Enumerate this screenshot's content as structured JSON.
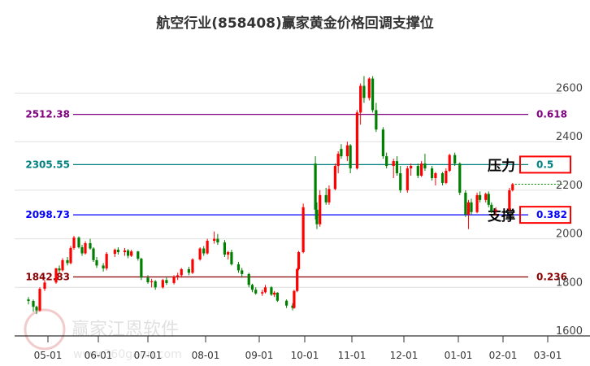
{
  "chart_data": {
    "type": "candlestick",
    "title": "航空行业(858408)赢家黄金价格回调支撑位",
    "ylim": [
      1600,
      2680
    ],
    "yticks": [
      1600,
      1800,
      2000,
      2200,
      2400,
      2600
    ],
    "xticks": [
      "05-01",
      "06-01",
      "07-01",
      "08-01",
      "09-01",
      "10-01",
      "11-01",
      "12-01",
      "01-01",
      "02-01",
      "03-01"
    ],
    "grid": true,
    "colors": {
      "up": "#ff0000",
      "down": "#008000"
    },
    "fib_levels": [
      {
        "ratio": "0.618",
        "value": 2512.38,
        "label": "2512.38",
        "color": "#800080"
      },
      {
        "ratio": "0.5",
        "value": 2305.55,
        "label": "2305.55",
        "color": "#008080",
        "tag": "压力",
        "boxed": true
      },
      {
        "ratio": "0.382",
        "value": 2098.73,
        "label": "2098.73",
        "color": "#0000ff",
        "tag": "支撑",
        "boxed": true
      },
      {
        "ratio": "0.236",
        "value": 1842.83,
        "label": "1842.83",
        "color": "#8b0000"
      }
    ],
    "last_price": 2225,
    "candles": [
      [
        "04-19",
        1750,
        1760,
        1730,
        1744
      ],
      [
        "04-22",
        1744,
        1750,
        1700,
        1720
      ],
      [
        "04-24",
        1720,
        1725,
        1690,
        1705
      ],
      [
        "04-26",
        1705,
        1800,
        1700,
        1794
      ],
      [
        "04-29",
        1794,
        1830,
        1785,
        1820
      ],
      [
        "05-06",
        1820,
        1880,
        1815,
        1878
      ],
      [
        "05-08",
        1878,
        1890,
        1860,
        1870
      ],
      [
        "05-10",
        1870,
        1920,
        1865,
        1912
      ],
      [
        "05-13",
        1912,
        1925,
        1890,
        1900
      ],
      [
        "05-15",
        1900,
        1970,
        1895,
        1962
      ],
      [
        "05-17",
        1962,
        2012,
        1955,
        2005
      ],
      [
        "05-20",
        2005,
        2010,
        1960,
        1965
      ],
      [
        "05-22",
        1965,
        1975,
        1930,
        1940
      ],
      [
        "05-24",
        1940,
        1990,
        1935,
        1982
      ],
      [
        "05-27",
        1982,
        2000,
        1955,
        1960
      ],
      [
        "05-29",
        1960,
        1965,
        1905,
        1912
      ],
      [
        "05-31",
        1912,
        1925,
        1880,
        1890
      ],
      [
        "06-04",
        1890,
        1900,
        1865,
        1878
      ],
      [
        "06-06",
        1878,
        1945,
        1870,
        1938
      ],
      [
        "06-11",
        1938,
        1960,
        1925,
        1955
      ],
      [
        "06-13",
        1955,
        1965,
        1935,
        1945
      ],
      [
        "06-17",
        1945,
        1962,
        1930,
        1952
      ],
      [
        "06-19",
        1952,
        1958,
        1920,
        1930
      ],
      [
        "06-21",
        1930,
        1955,
        1925,
        1948
      ],
      [
        "06-25",
        1948,
        1950,
        1910,
        1918
      ],
      [
        "06-27",
        1918,
        1922,
        1830,
        1840
      ],
      [
        "07-01",
        1840,
        1850,
        1815,
        1821
      ],
      [
        "07-03",
        1821,
        1835,
        1800,
        1825
      ],
      [
        "07-05",
        1825,
        1830,
        1790,
        1800
      ],
      [
        "07-09",
        1800,
        1835,
        1795,
        1830
      ],
      [
        "07-11",
        1830,
        1840,
        1810,
        1818
      ],
      [
        "07-15",
        1818,
        1850,
        1812,
        1845
      ],
      [
        "07-17",
        1845,
        1860,
        1830,
        1850
      ],
      [
        "07-19",
        1850,
        1880,
        1840,
        1875
      ],
      [
        "07-23",
        1875,
        1885,
        1850,
        1860
      ],
      [
        "07-25",
        1860,
        1920,
        1855,
        1915
      ],
      [
        "07-29",
        1915,
        1965,
        1910,
        1960
      ],
      [
        "07-31",
        1960,
        1970,
        1930,
        1940
      ],
      [
        "08-02",
        1940,
        2000,
        1935,
        1992
      ],
      [
        "08-06",
        1992,
        2030,
        1980,
        2000
      ],
      [
        "08-08",
        2000,
        2020,
        1975,
        1985
      ],
      [
        "08-12",
        1985,
        1995,
        1925,
        1935
      ],
      [
        "08-14",
        1935,
        1950,
        1915,
        1945
      ],
      [
        "08-16",
        1945,
        1955,
        1890,
        1895
      ],
      [
        "08-20",
        1895,
        1905,
        1860,
        1870
      ],
      [
        "08-22",
        1870,
        1880,
        1840,
        1855
      ],
      [
        "08-26",
        1855,
        1860,
        1800,
        1810
      ],
      [
        "08-28",
        1810,
        1815,
        1780,
        1790
      ],
      [
        "08-30",
        1790,
        1800,
        1770,
        1775
      ],
      [
        "09-03",
        1775,
        1790,
        1765,
        1780
      ],
      [
        "09-05",
        1780,
        1810,
        1775,
        1800
      ],
      [
        "09-09",
        1800,
        1805,
        1765,
        1770
      ],
      [
        "09-11",
        1770,
        1785,
        1760,
        1778
      ],
      [
        "09-13",
        1778,
        1780,
        1740,
        1745
      ],
      [
        "09-19",
        1745,
        1750,
        1715,
        1725
      ],
      [
        "09-23",
        1725,
        1735,
        1705,
        1715
      ],
      [
        "09-24",
        1715,
        1790,
        1712,
        1785
      ],
      [
        "09-26",
        1785,
        1880,
        1780,
        1875
      ],
      [
        "09-27",
        1875,
        1950,
        1870,
        1945
      ],
      [
        "09-30",
        1945,
        2145,
        1940,
        2130
      ],
      [
        "10-08",
        2310,
        2340,
        2080,
        2120
      ],
      [
        "10-09",
        2120,
        2150,
        2040,
        2060
      ],
      [
        "10-11",
        2060,
        2200,
        2050,
        2180
      ],
      [
        "10-15",
        2180,
        2210,
        2140,
        2150
      ],
      [
        "10-17",
        2150,
        2220,
        2140,
        2205
      ],
      [
        "10-21",
        2205,
        2310,
        2200,
        2300
      ],
      [
        "10-23",
        2300,
        2360,
        2270,
        2350
      ],
      [
        "10-25",
        2370,
        2390,
        2330,
        2340
      ],
      [
        "10-29",
        2340,
        2400,
        2320,
        2385
      ],
      [
        "10-31",
        2385,
        2390,
        2270,
        2290
      ],
      [
        "11-04",
        2290,
        2530,
        2285,
        2520
      ],
      [
        "11-06",
        2520,
        2640,
        2470,
        2630
      ],
      [
        "11-08",
        2630,
        2670,
        2560,
        2580
      ],
      [
        "11-11",
        2580,
        2665,
        2570,
        2660
      ],
      [
        "11-13",
        2660,
        2670,
        2520,
        2530
      ],
      [
        "11-15",
        2530,
        2560,
        2440,
        2450
      ],
      [
        "11-19",
        2450,
        2460,
        2330,
        2340
      ],
      [
        "11-21",
        2340,
        2355,
        2290,
        2300
      ],
      [
        "11-25",
        2300,
        2330,
        2250,
        2320
      ],
      [
        "11-27",
        2320,
        2340,
        2260,
        2270
      ],
      [
        "11-29",
        2270,
        2300,
        2190,
        2200
      ],
      [
        "12-03",
        2200,
        2300,
        2190,
        2290
      ],
      [
        "12-05",
        2290,
        2310,
        2260,
        2300
      ],
      [
        "12-09",
        2300,
        2310,
        2250,
        2260
      ],
      [
        "12-11",
        2260,
        2320,
        2255,
        2310
      ],
      [
        "12-13",
        2310,
        2350,
        2280,
        2290
      ],
      [
        "12-17",
        2290,
        2300,
        2240,
        2250
      ],
      [
        "12-19",
        2250,
        2275,
        2220,
        2270
      ],
      [
        "12-23",
        2270,
        2275,
        2220,
        2230
      ],
      [
        "12-25",
        2230,
        2290,
        2225,
        2280
      ],
      [
        "12-27",
        2280,
        2350,
        2275,
        2345
      ],
      [
        "12-30",
        2345,
        2355,
        2300,
        2310
      ],
      [
        "01-02",
        2310,
        2315,
        2180,
        2190
      ],
      [
        "01-06",
        2190,
        2200,
        2090,
        2100
      ],
      [
        "01-08",
        2100,
        2160,
        2040,
        2150
      ],
      [
        "01-10",
        2150,
        2165,
        2100,
        2110
      ],
      [
        "01-14",
        2110,
        2190,
        2105,
        2180
      ],
      [
        "01-16",
        2180,
        2195,
        2150,
        2160
      ],
      [
        "01-20",
        2160,
        2190,
        2150,
        2185
      ],
      [
        "01-22",
        2185,
        2195,
        2130,
        2140
      ],
      [
        "01-24",
        2140,
        2150,
        2105,
        2115
      ],
      [
        "01-27",
        2115,
        2130,
        2095,
        2120
      ],
      [
        "02-05",
        2120,
        2210,
        2115,
        2200
      ],
      [
        "02-07",
        2200,
        2230,
        2195,
        2225
      ]
    ]
  },
  "watermark": {
    "name": "赢家江恩软件",
    "url": "www.360gann.com",
    "seal": "江恩赢家"
  }
}
